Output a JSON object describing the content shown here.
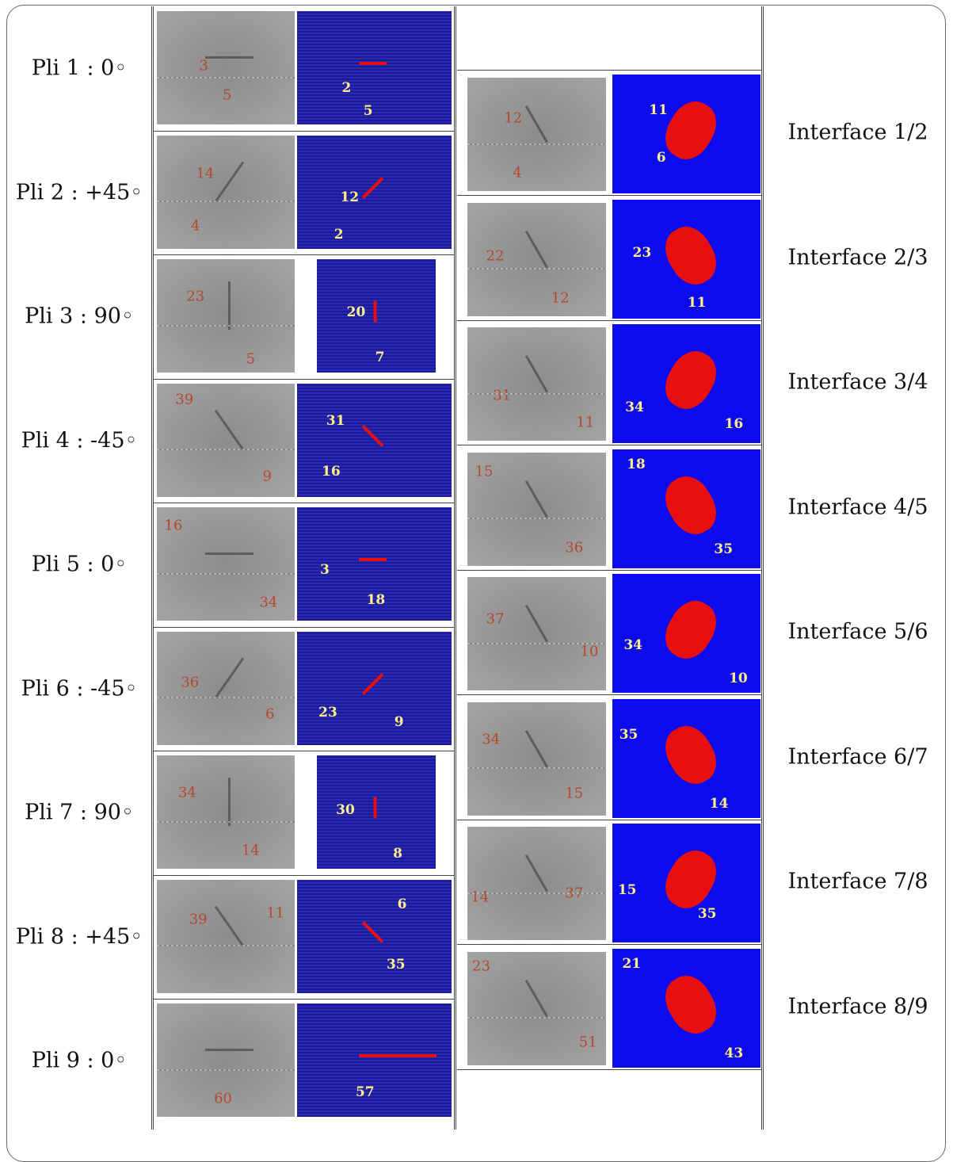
{
  "plies": [
    {
      "label": "Pli 1 : 0◦",
      "gray": [
        3,
        5
      ],
      "blue": [
        2,
        5
      ]
    },
    {
      "label": "Pli 2 : +45◦",
      "gray": [
        14,
        4
      ],
      "blue": [
        12,
        2
      ]
    },
    {
      "label": "Pli 3 : 90◦",
      "gray": [
        23,
        5
      ],
      "blue": [
        20,
        7
      ]
    },
    {
      "label": "Pli 4 : -45◦",
      "gray": [
        39,
        9
      ],
      "blue": [
        31,
        16
      ]
    },
    {
      "label": "Pli 5 : 0◦",
      "gray": [
        16,
        34
      ],
      "blue": [
        3,
        18
      ]
    },
    {
      "label": "Pli 6 : -45◦",
      "gray": [
        36,
        6
      ],
      "blue": [
        23,
        9
      ]
    },
    {
      "label": "Pli 7 : 90◦",
      "gray": [
        34,
        14
      ],
      "blue": [
        30,
        8
      ]
    },
    {
      "label": "Pli 8 : +45◦",
      "gray": [
        39,
        11
      ],
      "blue": [
        6,
        35
      ]
    },
    {
      "label": "Pli 9 : 0◦",
      "gray": [
        60
      ],
      "blue": [
        57
      ]
    }
  ],
  "interfaces": [
    {
      "label": "Interface 1/2",
      "gray": [
        12,
        4
      ],
      "blue": [
        11,
        6
      ]
    },
    {
      "label": "Interface 2/3",
      "gray": [
        22,
        12
      ],
      "blue": [
        23,
        11
      ]
    },
    {
      "label": "Interface 3/4",
      "gray": [
        31,
        11
      ],
      "blue": [
        34,
        16
      ]
    },
    {
      "label": "Interface 4/5",
      "gray": [
        15,
        36
      ],
      "blue": [
        18,
        35
      ]
    },
    {
      "label": "Interface 5/6",
      "gray": [
        37,
        10
      ],
      "blue": [
        34,
        10
      ]
    },
    {
      "label": "Interface 6/7",
      "gray": [
        34,
        15
      ],
      "blue": [
        35,
        14
      ]
    },
    {
      "label": "Interface 7/8",
      "gray": [
        14,
        37
      ],
      "blue": [
        15,
        35
      ]
    },
    {
      "label": "Interface 8/9",
      "gray": [
        23,
        51
      ],
      "blue": [
        21,
        43
      ]
    }
  ]
}
